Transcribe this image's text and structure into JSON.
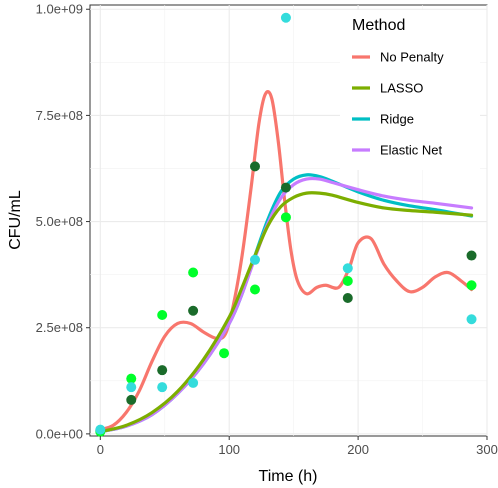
{
  "chart_data": {
    "type": "line",
    "title": "",
    "xlabel": "Time (h)",
    "ylabel": "CFU/mL",
    "xlim": [
      -8,
      300
    ],
    "ylim": [
      -5000000,
      1010000000
    ],
    "x_ticks": [
      0,
      100,
      200,
      300
    ],
    "x_tick_labels": [
      "0",
      "100",
      "200",
      "300"
    ],
    "y_ticks": [
      0,
      250000000,
      500000000,
      750000000,
      1000000000
    ],
    "y_tick_labels": [
      "0.0e+00",
      "2.5e+08",
      "5.0e+08",
      "7.5e+08",
      "1.0e+09"
    ],
    "grid": true,
    "legend": {
      "title": "Method",
      "position": "top-right"
    },
    "series": [
      {
        "name": "No Penalty",
        "color": "#f8766d",
        "x": [
          0,
          10,
          20,
          30,
          40,
          50,
          60,
          70,
          80,
          90,
          97,
          103,
          110,
          117,
          123,
          128,
          133,
          138,
          143,
          148,
          153,
          160,
          168,
          175,
          185,
          193,
          200,
          210,
          220,
          230,
          240,
          250,
          260,
          270,
          280,
          288
        ],
        "y": [
          10000000,
          20000000,
          50000000,
          100000000,
          170000000,
          230000000,
          260000000,
          260000000,
          240000000,
          225000000,
          235000000,
          300000000,
          420000000,
          580000000,
          730000000,
          800000000,
          790000000,
          690000000,
          550000000,
          430000000,
          360000000,
          330000000,
          345000000,
          350000000,
          345000000,
          390000000,
          450000000,
          460000000,
          400000000,
          360000000,
          335000000,
          345000000,
          370000000,
          380000000,
          360000000,
          340000000
        ]
      },
      {
        "name": "LASSO",
        "color": "#7cae00",
        "x": [
          0,
          20,
          40,
          60,
          80,
          100,
          110,
          120,
          130,
          140,
          150,
          160,
          170,
          180,
          200,
          220,
          240,
          260,
          288
        ],
        "y": [
          5000000,
          20000000,
          50000000,
          100000000,
          175000000,
          275000000,
          345000000,
          420000000,
          490000000,
          535000000,
          557000000,
          567000000,
          567000000,
          562000000,
          545000000,
          532000000,
          526000000,
          522000000,
          515000000
        ]
      },
      {
        "name": "Ridge",
        "color": "#00bfc4",
        "x": [
          0,
          20,
          40,
          60,
          80,
          100,
          110,
          120,
          130,
          140,
          150,
          160,
          170,
          180,
          200,
          220,
          240,
          260,
          288
        ],
        "y": [
          5000000,
          18000000,
          45000000,
          95000000,
          165000000,
          260000000,
          330000000,
          420000000,
          505000000,
          570000000,
          600000000,
          610000000,
          606000000,
          595000000,
          570000000,
          550000000,
          537000000,
          528000000,
          513000000
        ]
      },
      {
        "name": "Elastic Net",
        "color": "#c77cff",
        "x": [
          0,
          20,
          40,
          60,
          80,
          100,
          110,
          120,
          130,
          140,
          150,
          160,
          170,
          180,
          200,
          220,
          240,
          260,
          288
        ],
        "y": [
          5000000,
          18000000,
          45000000,
          95000000,
          165000000,
          260000000,
          330000000,
          415000000,
          495000000,
          555000000,
          587000000,
          600000000,
          600000000,
          592000000,
          575000000,
          560000000,
          550000000,
          543000000,
          532000000
        ]
      }
    ],
    "points": [
      {
        "x": 0,
        "y": 8000000,
        "color": "#1a6b2a"
      },
      {
        "x": 0,
        "y": 5000000,
        "color": "#00ff2a"
      },
      {
        "x": 0,
        "y": 10000000,
        "color": "#34dcdc"
      },
      {
        "x": 24,
        "y": 80000000,
        "color": "#1a6b2a"
      },
      {
        "x": 24,
        "y": 130000000,
        "color": "#00ff2a"
      },
      {
        "x": 24,
        "y": 110000000,
        "color": "#34dcdc"
      },
      {
        "x": 48,
        "y": 150000000,
        "color": "#1a6b2a"
      },
      {
        "x": 48,
        "y": 280000000,
        "color": "#00ff2a"
      },
      {
        "x": 48,
        "y": 110000000,
        "color": "#34dcdc"
      },
      {
        "x": 72,
        "y": 290000000,
        "color": "#1a6b2a"
      },
      {
        "x": 72,
        "y": 380000000,
        "color": "#00ff2a"
      },
      {
        "x": 72,
        "y": 120000000,
        "color": "#34dcdc"
      },
      {
        "x": 96,
        "y": 190000000,
        "color": "#00ff2a"
      },
      {
        "x": 120,
        "y": 630000000,
        "color": "#1a6b2a"
      },
      {
        "x": 120,
        "y": 340000000,
        "color": "#00ff2a"
      },
      {
        "x": 120,
        "y": 410000000,
        "color": "#34dcdc"
      },
      {
        "x": 144,
        "y": 580000000,
        "color": "#1a6b2a"
      },
      {
        "x": 144,
        "y": 510000000,
        "color": "#00ff2a"
      },
      {
        "x": 144,
        "y": 980000000,
        "color": "#34dcdc"
      },
      {
        "x": 192,
        "y": 320000000,
        "color": "#1a6b2a"
      },
      {
        "x": 192,
        "y": 360000000,
        "color": "#00ff2a"
      },
      {
        "x": 192,
        "y": 390000000,
        "color": "#34dcdc"
      },
      {
        "x": 288,
        "y": 420000000,
        "color": "#1a6b2a"
      },
      {
        "x": 288,
        "y": 350000000,
        "color": "#00ff2a"
      },
      {
        "x": 288,
        "y": 270000000,
        "color": "#34dcdc"
      }
    ]
  }
}
